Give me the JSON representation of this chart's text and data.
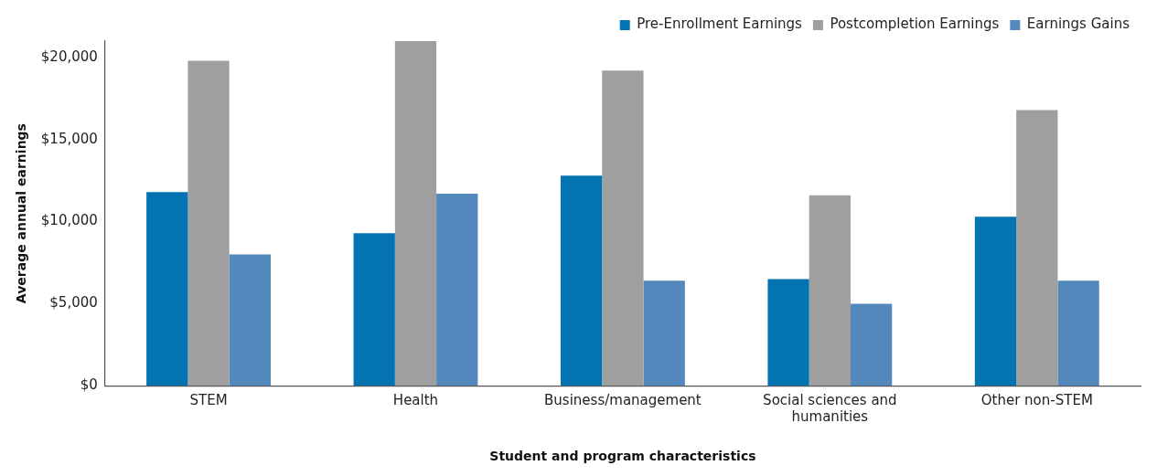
{
  "chart_data": {
    "type": "bar",
    "xlabel": "Student and program characteristics",
    "ylabel": "Average annual earnings",
    "categories": [
      "STEM",
      "Health",
      "Business/management",
      "Social sciences and humanities",
      "Other non-STEM"
    ],
    "series": [
      {
        "name": "Pre-Enrollment Earnings",
        "color": "#0473b1",
        "values": [
          11800,
          9300,
          12800,
          6500,
          10300
        ]
      },
      {
        "name": "Postcompletion Earnings",
        "color": "#9f9f9f",
        "values": [
          19800,
          21000,
          19200,
          11600,
          16800
        ]
      },
      {
        "name": "Earnings Gains",
        "color": "#5288bc",
        "values": [
          8000,
          11700,
          6400,
          5000,
          6400
        ]
      }
    ],
    "ylim": [
      0,
      21000
    ],
    "yticks": [
      {
        "value": 0,
        "label": "$0"
      },
      {
        "value": 5000,
        "label": "$5,000"
      },
      {
        "value": 10000,
        "label": "$10,000"
      },
      {
        "value": 15000,
        "label": "$15,000"
      },
      {
        "value": 20000,
        "label": "$20,000"
      }
    ],
    "grid": false,
    "legend": "top right"
  }
}
